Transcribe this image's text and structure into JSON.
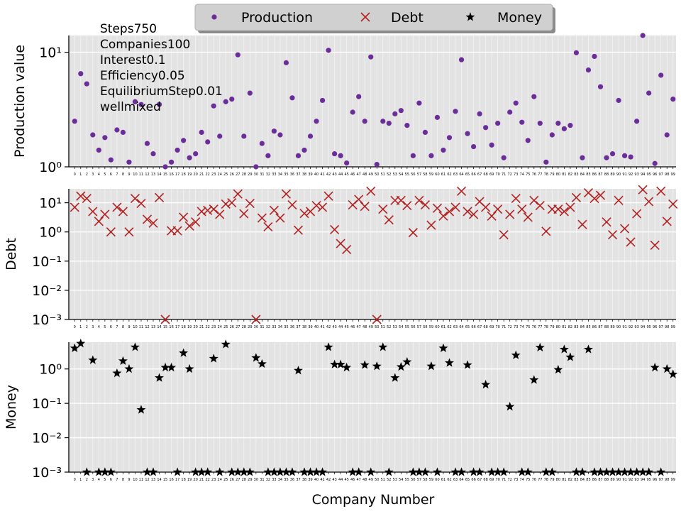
{
  "annotation_lines": [
    "Steps750",
    "Companies100",
    "Interest0.1",
    "Efficiency0.05",
    "EquilibriumStep0.01",
    "wellmixed"
  ],
  "colors": {
    "production": "#6a2d9a",
    "debt": "#b22222",
    "money": "#000000",
    "panel_bg": "#e3e3e3",
    "grid": "#f4f4f4"
  },
  "chart_data": [
    {
      "type": "scatter",
      "title": "",
      "xlabel": "",
      "ylabel": "Production value",
      "yscale": "log",
      "ylim": [
        1,
        14
      ],
      "yticks": [
        {
          "value": 1,
          "label": "10⁰"
        },
        {
          "value": 10,
          "label": "10¹"
        }
      ],
      "xticks": [
        "0",
        "1",
        "2",
        "3",
        "4",
        "5",
        "6",
        "7",
        "8",
        "9",
        "10",
        "11",
        "12",
        "13",
        "14",
        "15",
        "16",
        "17",
        "18",
        "19",
        "20",
        "21",
        "22",
        "23",
        "24",
        "25",
        "26",
        "27",
        "28",
        "29",
        "30",
        "31",
        "32",
        "33",
        "34",
        "35",
        "36",
        "37",
        "38",
        "39",
        "40",
        "41",
        "42",
        "43",
        "44",
        "45",
        "46",
        "47",
        "48",
        "49",
        "50",
        "51",
        "52",
        "53",
        "54",
        "55",
        "56",
        "57",
        "58",
        "59",
        "60",
        "61",
        "62",
        "63",
        "64",
        "65",
        "66",
        "67",
        "68",
        "69",
        "70",
        "71",
        "72",
        "73",
        "74",
        "75",
        "76",
        "77",
        "78",
        "79",
        "80",
        "81",
        "82",
        "83",
        "84",
        "85",
        "86",
        "87",
        "88",
        "89",
        "90",
        "91",
        "92",
        "93",
        "94",
        "95",
        "96",
        "97",
        "98",
        "99"
      ],
      "grid": true,
      "legend": {
        "position": "top-center",
        "entries": [
          "Production",
          "Debt",
          "Money"
        ]
      },
      "series": [
        {
          "name": "Production",
          "marker": "circle",
          "values": [
            2.5,
            6.5,
            5.3,
            1.9,
            1.4,
            1.8,
            1.15,
            2.1,
            2.0,
            1.1,
            3.7,
            3.5,
            1.6,
            1.3,
            3.5,
            1.0,
            1.1,
            1.4,
            1.7,
            1.2,
            1.3,
            2.0,
            1.65,
            3.4,
            1.85,
            3.7,
            3.9,
            9.5,
            1.85,
            4.4,
            1.0,
            1.6,
            1.25,
            2.05,
            1.9,
            8.1,
            4.0,
            1.25,
            1.4,
            1.85,
            2.5,
            3.8,
            10.4,
            1.3,
            1.25,
            1.08,
            3.0,
            4.1,
            2.5,
            9.1,
            1.05,
            2.5,
            2.4,
            2.9,
            3.1,
            2.3,
            1.25,
            3.6,
            2.0,
            1.25,
            2.7,
            1.4,
            1.8,
            3.05,
            8.6,
            1.95,
            1.5,
            2.9,
            2.2,
            1.55,
            2.4,
            1.2,
            3.0,
            3.6,
            2.45,
            1.7,
            4.1,
            2.4,
            1.1,
            1.9,
            2.4,
            2.15,
            2.3,
            9.9,
            1.2,
            7.0,
            9.2,
            5.0,
            1.2,
            1.3,
            3.8,
            1.25,
            1.22,
            2.5,
            14.0,
            4.4,
            1.07,
            6.3,
            1.9,
            3.9
          ]
        }
      ]
    },
    {
      "type": "scatter",
      "title": "",
      "xlabel": "",
      "ylabel": "Debt",
      "yscale": "log",
      "ylim": [
        0.001,
        30
      ],
      "yticks": [
        {
          "value": 0.001,
          "label": "10⁻³"
        },
        {
          "value": 0.01,
          "label": "10⁻²"
        },
        {
          "value": 0.1,
          "label": "10⁻¹"
        },
        {
          "value": 1,
          "label": "10⁰"
        },
        {
          "value": 10,
          "label": "10¹"
        }
      ],
      "grid": true,
      "series": [
        {
          "name": "Debt",
          "marker": "x",
          "values": [
            7,
            17,
            14,
            5,
            2.3,
            4,
            1,
            7,
            5,
            1,
            14,
            9.5,
            2.7,
            2,
            15,
            0.001,
            1.1,
            1.1,
            3.2,
            1.6,
            2.2,
            5,
            5.5,
            6,
            4,
            9,
            10,
            20,
            4.2,
            9.5,
            0.001,
            3,
            1.5,
            5.5,
            3,
            20,
            8.5,
            1.15,
            4.3,
            5,
            8,
            7,
            17,
            1.2,
            0.4,
            0.25,
            8.5,
            13,
            7.5,
            25,
            0.001,
            6,
            2.6,
            12,
            12,
            8,
            0.95,
            12,
            8.5,
            1.7,
            6.5,
            3.5,
            5,
            7,
            25,
            5,
            4,
            11,
            7,
            3.5,
            6,
            0.8,
            4,
            14,
            6,
            3.2,
            12,
            8,
            1.05,
            6,
            6,
            5,
            7,
            15,
            1.8,
            22,
            14,
            18,
            2.2,
            0.8,
            12,
            1.3,
            0.45,
            4.2,
            28,
            11,
            0.35,
            25,
            2.3,
            9
          ]
        }
      ]
    },
    {
      "type": "scatter",
      "title": "",
      "xlabel": "Company Number",
      "ylabel": "Money",
      "yscale": "log",
      "ylim": [
        0.001,
        6
      ],
      "yticks": [
        {
          "value": 0.001,
          "label": "10⁻³"
        },
        {
          "value": 0.01,
          "label": "10⁻²"
        },
        {
          "value": 0.1,
          "label": "10⁻¹"
        },
        {
          "value": 1,
          "label": "10⁰"
        }
      ],
      "grid": true,
      "series": [
        {
          "name": "Money",
          "marker": "star",
          "values": [
            4.0,
            5.5,
            0.001,
            1.8,
            0.001,
            0.001,
            0.001,
            0.75,
            1.7,
            1.0,
            4.3,
            0.065,
            0.001,
            0.001,
            0.55,
            1.1,
            1.1,
            0.001,
            2.9,
            1.0,
            0.001,
            0.001,
            0.001,
            2.0,
            0.001,
            5.2,
            0.001,
            0.001,
            0.001,
            0.001,
            2.1,
            1.4,
            0.001,
            0.001,
            0.001,
            0.001,
            0.001,
            0.9,
            0.001,
            0.001,
            0.001,
            0.001,
            4.3,
            1.35,
            1.35,
            1.1,
            0.001,
            0.001,
            1.3,
            0.001,
            1.2,
            4.3,
            0.001,
            0.55,
            1.15,
            1.6,
            0.001,
            0.001,
            0.001,
            1.2,
            0.001,
            4.0,
            1.5,
            0.001,
            0.001,
            1.3,
            0.001,
            0.001,
            0.35,
            0.001,
            0.001,
            0.001,
            0.08,
            2.5,
            0.001,
            0.001,
            0.48,
            4.2,
            0.001,
            0.001,
            0.95,
            3.7,
            2.2,
            0.001,
            0.001,
            3.7,
            0.001,
            0.001,
            0.001,
            0.001,
            0.001,
            0.001,
            0.001,
            0.001,
            0.001,
            0.001,
            1.1,
            0.001,
            1.0,
            0.7
          ]
        }
      ]
    }
  ]
}
